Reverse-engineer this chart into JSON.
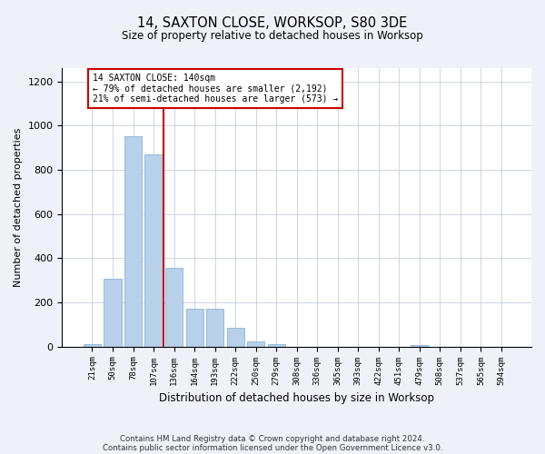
{
  "title": "14, SAXTON CLOSE, WORKSOP, S80 3DE",
  "subtitle": "Size of property relative to detached houses in Worksop",
  "xlabel": "Distribution of detached houses by size in Worksop",
  "ylabel": "Number of detached properties",
  "bar_color": "#b8d0ea",
  "bar_edge_color": "#7aaad0",
  "highlight_line_color": "#cc0000",
  "highlight_box_color": "#cc0000",
  "annotation_line1": "14 SAXTON CLOSE: 140sqm",
  "annotation_line2": "← 79% of detached houses are smaller (2,192)",
  "annotation_line3": "21% of semi-detached houses are larger (573) →",
  "property_bin_index": 4,
  "categories": [
    "21sqm",
    "50sqm",
    "78sqm",
    "107sqm",
    "136sqm",
    "164sqm",
    "193sqm",
    "222sqm",
    "250sqm",
    "279sqm",
    "308sqm",
    "336sqm",
    "365sqm",
    "393sqm",
    "422sqm",
    "451sqm",
    "479sqm",
    "508sqm",
    "537sqm",
    "565sqm",
    "594sqm"
  ],
  "values": [
    10,
    305,
    950,
    870,
    355,
    170,
    170,
    85,
    25,
    10,
    0,
    0,
    0,
    0,
    0,
    0,
    5,
    0,
    0,
    0,
    0
  ],
  "ylim": [
    0,
    1260
  ],
  "yticks": [
    0,
    200,
    400,
    600,
    800,
    1000,
    1200
  ],
  "footer_line1": "Contains HM Land Registry data © Crown copyright and database right 2024.",
  "footer_line2": "Contains public sector information licensed under the Open Government Licence v3.0.",
  "background_color": "#eef2f8",
  "plot_bg_color": "#ffffff"
}
